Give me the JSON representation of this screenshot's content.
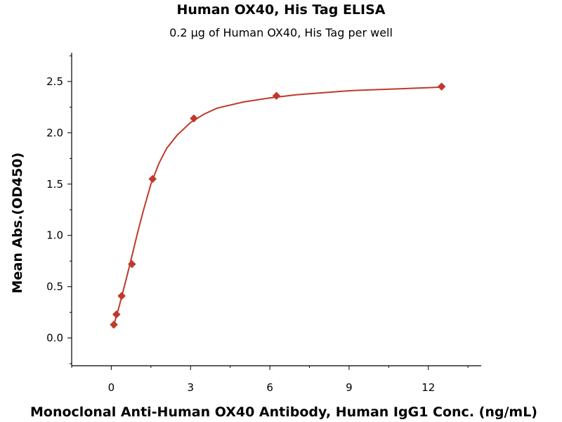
{
  "chart_data": {
    "type": "scatter",
    "title": "Human OX40, His Tag ELISA",
    "subtitle": "0.2 µg of Human OX40, His Tag per well",
    "xlabel": "Monoclonal Anti-Human OX40 Antibody, Human IgG1 Conc. (ng/mL)",
    "ylabel": "Mean Abs.(OD450)",
    "xlim": [
      -1.5,
      14
    ],
    "ylim": [
      -0.27,
      2.78
    ],
    "xticks": [
      0,
      3,
      6,
      9,
      12
    ],
    "xtick_labels": [
      "0",
      "3",
      "6",
      "9",
      "12"
    ],
    "yticks": [
      0.0,
      0.5,
      1.0,
      1.5,
      2.0,
      2.5
    ],
    "ytick_labels": [
      "0.0",
      "0.5",
      "1.0",
      "1.5",
      "2.0",
      "2.5"
    ],
    "grid": false,
    "series": [
      {
        "x": [
          0.098,
          0.195,
          0.391,
          0.781,
          1.563,
          3.125,
          6.25,
          12.5
        ],
        "y": [
          0.13,
          0.23,
          0.41,
          0.72,
          1.55,
          2.14,
          2.36,
          2.45
        ],
        "marker": "diamond",
        "color": "#c0392b"
      }
    ],
    "fit_curve": {
      "color": "#c0392b",
      "x": [
        0.05,
        0.1,
        0.2,
        0.3,
        0.4,
        0.5,
        0.6,
        0.8,
        1.0,
        1.2,
        1.5,
        1.8,
        2.1,
        2.5,
        3.0,
        3.5,
        4.0,
        5.0,
        6.0,
        7.0,
        8.0,
        9.0,
        10.0,
        11.0,
        12.0,
        12.5
      ],
      "y": [
        0.1,
        0.13,
        0.22,
        0.31,
        0.41,
        0.51,
        0.61,
        0.82,
        1.03,
        1.23,
        1.5,
        1.7,
        1.85,
        1.98,
        2.1,
        2.18,
        2.24,
        2.3,
        2.34,
        2.37,
        2.39,
        2.41,
        2.42,
        2.43,
        2.44,
        2.445
      ]
    }
  }
}
